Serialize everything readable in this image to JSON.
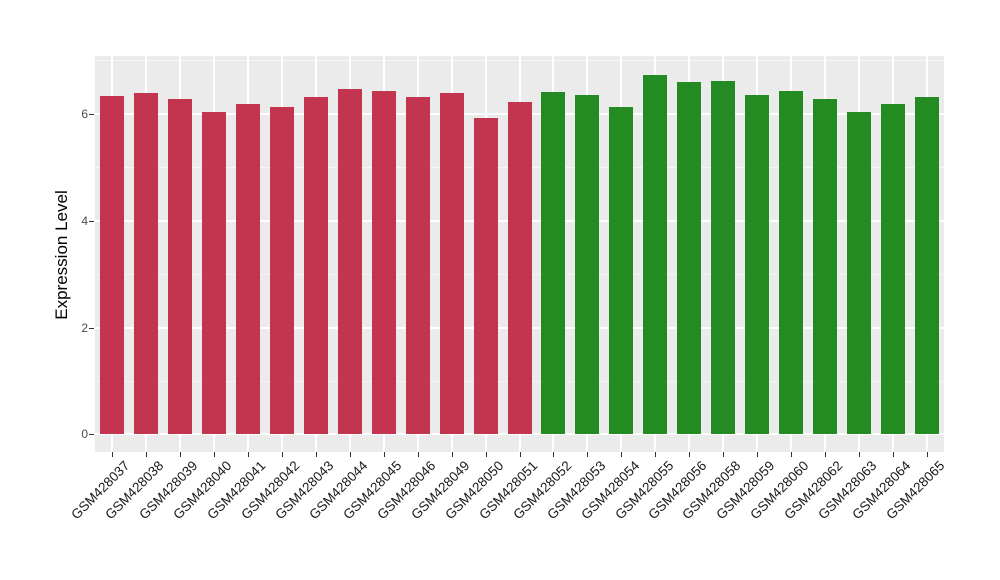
{
  "chart_data": {
    "type": "bar",
    "title": "",
    "xlabel": "",
    "ylabel": "Expression Level",
    "ylim": [
      -0.33,
      7.09
    ],
    "yticks": [
      0,
      2,
      4,
      6
    ],
    "ytick_step": 2,
    "grid": true,
    "legend_position": "none",
    "panel_background": "#EBEBEB",
    "grid_major_color": "#FFFFFF",
    "tick_color": "#333333",
    "group_colors": {
      "red": "#C3344F",
      "green": "#238B22"
    },
    "bars": [
      {
        "label": "GSM428037",
        "value": 6.34,
        "group": "red"
      },
      {
        "label": "GSM428038",
        "value": 6.39,
        "group": "red"
      },
      {
        "label": "GSM428039",
        "value": 6.29,
        "group": "red"
      },
      {
        "label": "GSM428040",
        "value": 6.04,
        "group": "red"
      },
      {
        "label": "GSM428041",
        "value": 6.19,
        "group": "red"
      },
      {
        "label": "GSM428042",
        "value": 6.13,
        "group": "red"
      },
      {
        "label": "GSM428043",
        "value": 6.32,
        "group": "red"
      },
      {
        "label": "GSM428044",
        "value": 6.47,
        "group": "red"
      },
      {
        "label": "GSM428045",
        "value": 6.43,
        "group": "red"
      },
      {
        "label": "GSM428046",
        "value": 6.32,
        "group": "red"
      },
      {
        "label": "GSM428049",
        "value": 6.39,
        "group": "red"
      },
      {
        "label": "GSM428050",
        "value": 5.93,
        "group": "red"
      },
      {
        "label": "GSM428051",
        "value": 6.23,
        "group": "red"
      },
      {
        "label": "GSM428052",
        "value": 6.41,
        "group": "green"
      },
      {
        "label": "GSM428053",
        "value": 6.36,
        "group": "green"
      },
      {
        "label": "GSM428054",
        "value": 6.13,
        "group": "green"
      },
      {
        "label": "GSM428055",
        "value": 6.74,
        "group": "green"
      },
      {
        "label": "GSM428056",
        "value": 6.61,
        "group": "green"
      },
      {
        "label": "GSM428058",
        "value": 6.63,
        "group": "green"
      },
      {
        "label": "GSM428059",
        "value": 6.36,
        "group": "green"
      },
      {
        "label": "GSM428060",
        "value": 6.44,
        "group": "green"
      },
      {
        "label": "GSM428062",
        "value": 6.28,
        "group": "green"
      },
      {
        "label": "GSM428063",
        "value": 6.04,
        "group": "green"
      },
      {
        "label": "GSM428064",
        "value": 6.19,
        "group": "green"
      },
      {
        "label": "GSM428065",
        "value": 6.33,
        "group": "green"
      }
    ]
  }
}
